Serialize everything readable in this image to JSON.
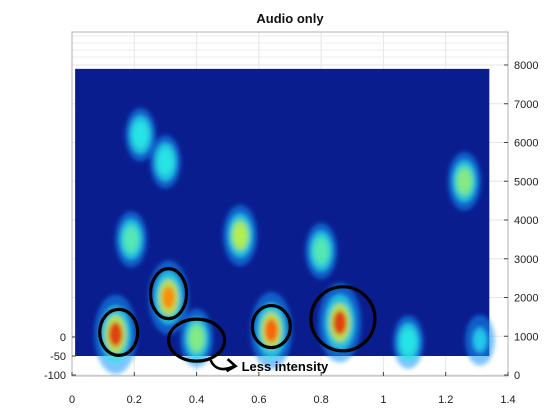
{
  "chart_data": {
    "type": "heatmap",
    "title": "Audio only",
    "xlabel": "",
    "ylabel_left": "",
    "ylabel_right": "",
    "x_axis": {
      "range": [
        0,
        1.4
      ],
      "ticks": [
        "0",
        "0.2",
        "0.4",
        "0.6",
        "0.8",
        "1",
        "1.2",
        "1.4"
      ]
    },
    "y_axis_right": {
      "range": [
        0,
        8000
      ],
      "ticks": [
        "0",
        "1000",
        "2000",
        "3000",
        "4000",
        "5000",
        "6000",
        "7000",
        "8000"
      ]
    },
    "y_axis_left": {
      "range": [
        -100,
        100
      ],
      "ticks": [
        "0",
        "-50",
        "-100"
      ]
    },
    "grid": true,
    "colormap": "jet",
    "background_color": "#0a1d8f",
    "spectrogram_extent": {
      "time": [
        0.01,
        1.34
      ],
      "frequency": [
        0,
        7900
      ]
    },
    "bands": [
      {
        "t": 0.14,
        "f": 1050,
        "intensity": 0.95
      },
      {
        "t": 0.19,
        "f": 3500,
        "intensity": 0.5
      },
      {
        "t": 0.22,
        "f": 6200,
        "intensity": 0.45
      },
      {
        "t": 0.31,
        "f": 2000,
        "intensity": 0.85
      },
      {
        "t": 0.3,
        "f": 5500,
        "intensity": 0.45
      },
      {
        "t": 0.4,
        "f": 950,
        "intensity": 0.55
      },
      {
        "t": 0.54,
        "f": 3600,
        "intensity": 0.6
      },
      {
        "t": 0.64,
        "f": 1150,
        "intensity": 0.9
      },
      {
        "t": 0.8,
        "f": 3200,
        "intensity": 0.5
      },
      {
        "t": 0.86,
        "f": 1350,
        "intensity": 0.95
      },
      {
        "t": 1.08,
        "f": 850,
        "intensity": 0.45
      },
      {
        "t": 1.26,
        "f": 5000,
        "intensity": 0.55
      },
      {
        "t": 1.31,
        "f": 900,
        "intensity": 0.4
      }
    ],
    "annotations": {
      "circles": [
        {
          "t": 0.15,
          "f": 1100
        },
        {
          "t": 0.31,
          "f": 2100
        },
        {
          "t": 0.4,
          "f": 900
        },
        {
          "t": 0.64,
          "f": 1250
        },
        {
          "t": 0.87,
          "f": 1450
        }
      ],
      "arrow_text": "Less intensity"
    }
  }
}
